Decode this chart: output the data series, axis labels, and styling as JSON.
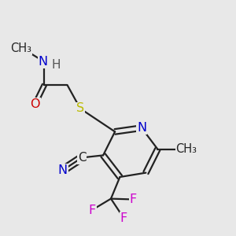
{
  "background_color": "#e8e8e8",
  "bond_color": "#222222",
  "atom_colors": {
    "N": "#0000CC",
    "S": "#BBBB00",
    "O": "#CC0000",
    "F": "#CC00CC",
    "C": "#222222",
    "H": "#555555"
  }
}
